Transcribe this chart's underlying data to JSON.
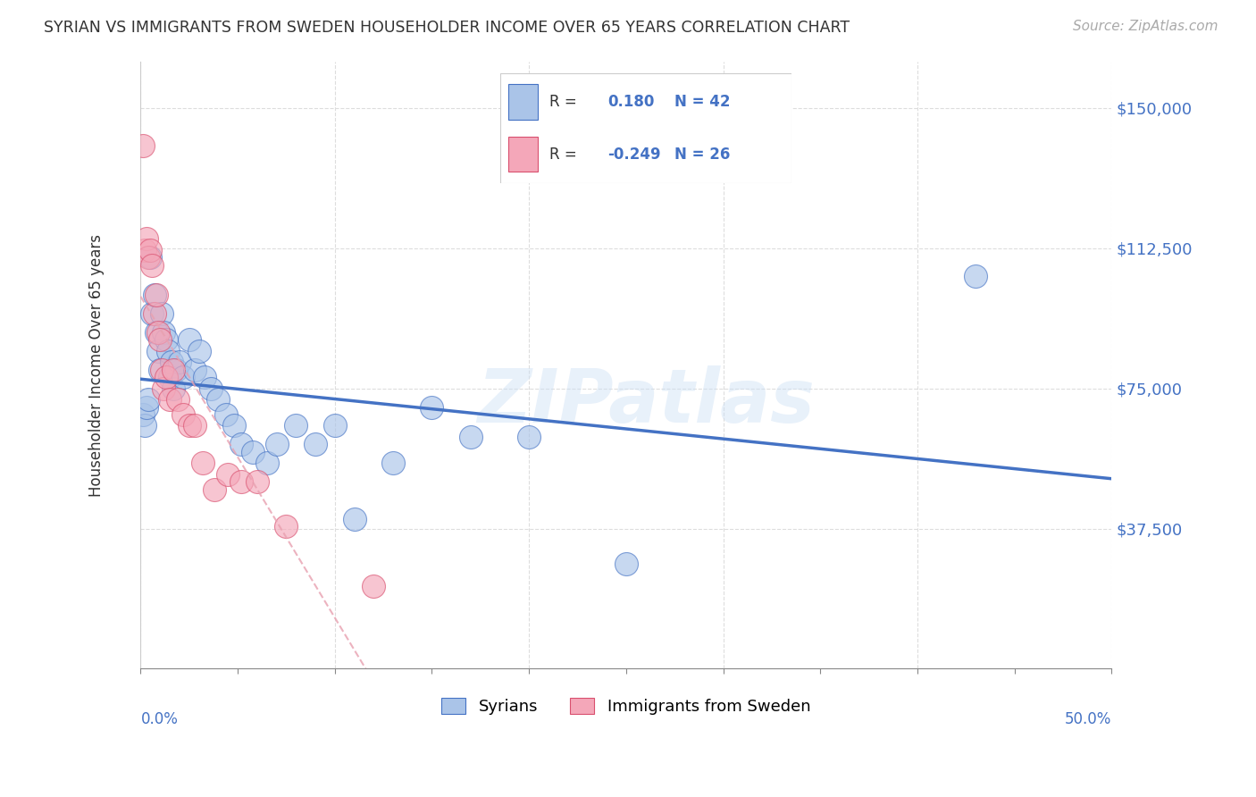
{
  "title": "SYRIAN VS IMMIGRANTS FROM SWEDEN HOUSEHOLDER INCOME OVER 65 YEARS CORRELATION CHART",
  "source": "Source: ZipAtlas.com",
  "ylabel": "Householder Income Over 65 years",
  "ytick_labels": [
    "$37,500",
    "$75,000",
    "$112,500",
    "$150,000"
  ],
  "ytick_values": [
    37500,
    75000,
    112500,
    150000
  ],
  "ylim": [
    0,
    162500
  ],
  "xlim": [
    0.0,
    0.5
  ],
  "legend_syrians": "Syrians",
  "legend_sweden": "Immigrants from Sweden",
  "r_syrians": 0.18,
  "n_syrians": 42,
  "r_sweden": -0.249,
  "n_sweden": 26,
  "color_syrians": "#aac4e8",
  "color_sweden": "#f4a7b9",
  "color_syrians_line": "#4472c4",
  "color_sweden_line": "#d94f6e",
  "watermark": "ZIPatlas",
  "syrians_x": [
    0.001,
    0.002,
    0.003,
    0.004,
    0.005,
    0.006,
    0.007,
    0.008,
    0.009,
    0.01,
    0.011,
    0.012,
    0.013,
    0.014,
    0.015,
    0.016,
    0.017,
    0.018,
    0.02,
    0.022,
    0.025,
    0.028,
    0.03,
    0.033,
    0.036,
    0.04,
    0.044,
    0.048,
    0.052,
    0.058,
    0.065,
    0.07,
    0.08,
    0.09,
    0.1,
    0.11,
    0.13,
    0.15,
    0.17,
    0.2,
    0.25,
    0.43
  ],
  "syrians_y": [
    68000,
    65000,
    70000,
    72000,
    110000,
    95000,
    100000,
    90000,
    85000,
    80000,
    95000,
    90000,
    88000,
    85000,
    78000,
    82000,
    75000,
    80000,
    82000,
    78000,
    88000,
    80000,
    85000,
    78000,
    75000,
    72000,
    68000,
    65000,
    60000,
    58000,
    55000,
    60000,
    65000,
    60000,
    65000,
    40000,
    55000,
    70000,
    62000,
    62000,
    28000,
    105000
  ],
  "sweden_x": [
    0.001,
    0.002,
    0.003,
    0.004,
    0.005,
    0.006,
    0.007,
    0.008,
    0.009,
    0.01,
    0.011,
    0.012,
    0.013,
    0.015,
    0.017,
    0.019,
    0.022,
    0.025,
    0.028,
    0.032,
    0.038,
    0.045,
    0.052,
    0.06,
    0.075,
    0.12
  ],
  "sweden_y": [
    140000,
    112000,
    115000,
    110000,
    112000,
    108000,
    95000,
    100000,
    90000,
    88000,
    80000,
    75000,
    78000,
    72000,
    80000,
    72000,
    68000,
    65000,
    65000,
    55000,
    48000,
    52000,
    50000,
    50000,
    38000,
    22000
  ]
}
